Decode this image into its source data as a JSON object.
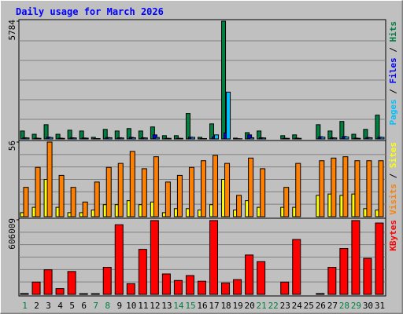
{
  "title": "Daily usage for March 2026",
  "categories": [
    "1",
    "2",
    "3",
    "4",
    "5",
    "6",
    "7",
    "8",
    "9",
    "10",
    "11",
    "12",
    "13",
    "14",
    "15",
    "16",
    "17",
    "18",
    "19",
    "20",
    "21",
    "22",
    "23",
    "24",
    "25",
    "26",
    "27",
    "28",
    "29",
    "30",
    "31"
  ],
  "category_colors": [
    "#008040",
    "#000000",
    "#000000",
    "#000000",
    "#000000",
    "#000000",
    "#008040",
    "#008040",
    "#000000",
    "#000000",
    "#000000",
    "#000000",
    "#000000",
    "#008040",
    "#008040",
    "#000000",
    "#000000",
    "#000000",
    "#000000",
    "#000000",
    "#008040",
    "#008040",
    "#000000",
    "#000000",
    "#000000",
    "#000000",
    "#000000",
    "#008040",
    "#008040",
    "#000000",
    "#000000"
  ],
  "chart_data": [
    {
      "type": "bar",
      "ylim": [
        0,
        5784
      ],
      "yticks": [
        5784
      ],
      "series": [
        {
          "name": "Hits",
          "color": "#008040",
          "values": [
            390,
            230,
            700,
            230,
            430,
            390,
            80,
            470,
            390,
            510,
            390,
            590,
            160,
            160,
            1250,
            80,
            740,
            5784,
            40,
            310,
            390,
            0,
            160,
            200,
            0,
            700,
            390,
            860,
            230,
            470,
            1170
          ]
        },
        {
          "name": "Files",
          "color": "#0000ff",
          "values": [
            60,
            40,
            90,
            40,
            60,
            50,
            20,
            70,
            60,
            80,
            60,
            200,
            30,
            30,
            90,
            20,
            100,
            300,
            10,
            200,
            60,
            0,
            30,
            40,
            0,
            110,
            60,
            120,
            40,
            70,
            90
          ]
        },
        {
          "name": "Pages",
          "color": "#00c0ff",
          "values": [
            50,
            30,
            70,
            30,
            50,
            40,
            20,
            60,
            50,
            60,
            50,
            70,
            30,
            30,
            80,
            20,
            200,
            2300,
            10,
            60,
            50,
            0,
            30,
            30,
            0,
            90,
            50,
            100,
            30,
            60,
            80
          ]
        }
      ]
    },
    {
      "type": "bar",
      "ylim": [
        0,
        56
      ],
      "yticks": [
        56
      ],
      "series": [
        {
          "name": "Sites",
          "color": "#ffff00",
          "values": [
            3,
            7,
            28,
            7,
            3,
            3,
            5,
            9,
            9,
            12,
            9,
            11,
            3,
            6,
            6,
            5,
            9,
            28,
            5,
            12,
            7,
            0,
            7,
            7,
            0,
            16,
            17,
            16,
            17,
            6,
            5
          ]
        },
        {
          "name": "Visits",
          "color": "#ff8000",
          "values": [
            22,
            37,
            56,
            31,
            22,
            11,
            26,
            37,
            40,
            49,
            36,
            45,
            26,
            31,
            37,
            42,
            46,
            40,
            16,
            44,
            36,
            0,
            22,
            40,
            0,
            42,
            44,
            45,
            42,
            42,
            42
          ]
        }
      ]
    },
    {
      "type": "bar",
      "ylim": [
        0,
        606009
      ],
      "yticks": [
        606009
      ],
      "series": [
        {
          "name": "KBytes",
          "color": "#ff0000",
          "values": [
            7000,
            100000,
            200000,
            47000,
            186000,
            6000,
            6000,
            220000,
            566000,
            87000,
            366000,
            600000,
            166000,
            113000,
            153000,
            107000,
            600000,
            93000,
            120000,
            320000,
            266000,
            0,
            100000,
            446000,
            0,
            7000,
            220000,
            373000,
            600000,
            293000,
            580000
          ]
        }
      ]
    }
  ]
}
